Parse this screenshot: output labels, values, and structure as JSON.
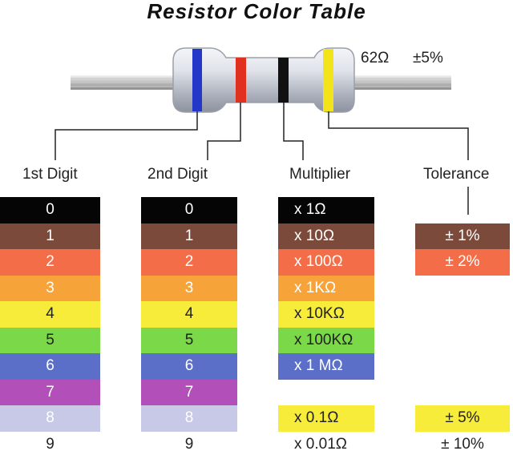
{
  "title": "Resistor Color Table",
  "resistor": {
    "value": "62Ω",
    "tolerance": "±5%"
  },
  "headers": {
    "digit1": "1st Digit",
    "digit2": "2nd Digit",
    "multiplier": "Multiplier",
    "tolerance": "Tolerance"
  },
  "digits": [
    {
      "label": "0",
      "color": "#050505",
      "text": "#ffffff"
    },
    {
      "label": "1",
      "color": "#7b4a3a",
      "text": "#ffffff"
    },
    {
      "label": "2",
      "color": "#f26d48",
      "text": "#ffffff"
    },
    {
      "label": "3",
      "color": "#f6a43a",
      "text": "#ffffff"
    },
    {
      "label": "4",
      "color": "#f7ec3a",
      "text": "#222222"
    },
    {
      "label": "5",
      "color": "#7bd848",
      "text": "#222222"
    },
    {
      "label": "6",
      "color": "#5b6fc8",
      "text": "#ffffff"
    },
    {
      "label": "7",
      "color": "#b24fb8",
      "text": "#ffffff"
    },
    {
      "label": "8",
      "color": "#c7c9e6",
      "text": "#ffffff"
    },
    {
      "label": "9",
      "color": "#ffffff",
      "text": "#222222"
    }
  ],
  "multipliers": [
    {
      "row": 0,
      "label": "x 1Ω",
      "color": "#050505",
      "text": "#ffffff"
    },
    {
      "row": 1,
      "label": "x 10Ω",
      "color": "#7b4a3a",
      "text": "#ffffff"
    },
    {
      "row": 2,
      "label": "x 100Ω",
      "color": "#f26d48",
      "text": "#ffffff"
    },
    {
      "row": 3,
      "label": "x 1KΩ",
      "color": "#f6a43a",
      "text": "#ffffff"
    },
    {
      "row": 4,
      "label": "x 10KΩ",
      "color": "#f7ec3a",
      "text": "#222222"
    },
    {
      "row": 5,
      "label": "x 100KΩ",
      "color": "#7bd848",
      "text": "#222222"
    },
    {
      "row": 6,
      "label": "x 1 MΩ",
      "color": "#5b6fc8",
      "text": "#ffffff"
    },
    {
      "row": 8,
      "label": "x 0.1Ω",
      "color": "#f7ec3a",
      "text": "#222222"
    },
    {
      "row": 9,
      "label": "x 0.01Ω",
      "color": "#ffffff",
      "text": "#222222"
    }
  ],
  "tolerances": [
    {
      "row": 1,
      "label": "± 1%",
      "color": "#7b4a3a",
      "text": "#ffffff"
    },
    {
      "row": 2,
      "label": "± 2%",
      "color": "#f26d48",
      "text": "#ffffff"
    },
    {
      "row": 8,
      "label": "± 5%",
      "color": "#f7ec3a",
      "text": "#222222"
    },
    {
      "row": 9,
      "label": "± 10%",
      "color": "#ffffff",
      "text": "#222222"
    }
  ],
  "band_colors": {
    "band1": "#2337c8",
    "band2": "#e0301e",
    "band3": "#111111",
    "band4": "#f3e31a"
  }
}
